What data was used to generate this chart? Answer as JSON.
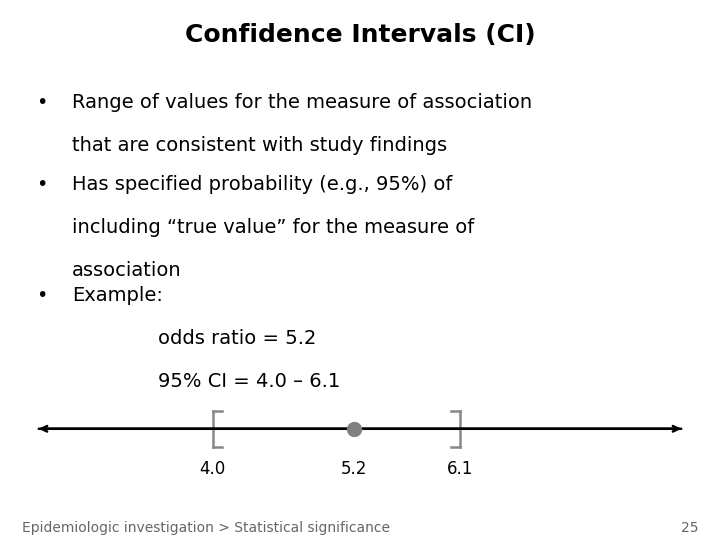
{
  "title": "Confidence Intervals (CI)",
  "title_fontsize": 18,
  "title_fontweight": "bold",
  "background_color": "#ffffff",
  "text_color": "#000000",
  "bullet1_line1": "Range of values for the measure of association",
  "bullet1_line2": "that are consistent with study findings",
  "bullet2_line1": "Has specified probability (e.g., 95%) of",
  "bullet2_line2": "including “true value” for the measure of",
  "bullet2_line3": "association",
  "bullet3": "Example:",
  "sub1": "odds ratio = 5.2",
  "sub2": "95% CI = 4.0 – 6.1",
  "body_fontsize": 14,
  "footer_text": "Epidemiologic investigation > Statistical significance",
  "footer_number": "25",
  "footer_fontsize": 10,
  "ci_low": 4.0,
  "ci_mid": 5.2,
  "ci_high": 6.1,
  "axis_min": 2.5,
  "axis_max": 8.0,
  "tick_labels_fontsize": 12,
  "dot_color": "#808080",
  "line_color": "#000000",
  "bracket_color": "#888888",
  "footer_color": "#666666"
}
